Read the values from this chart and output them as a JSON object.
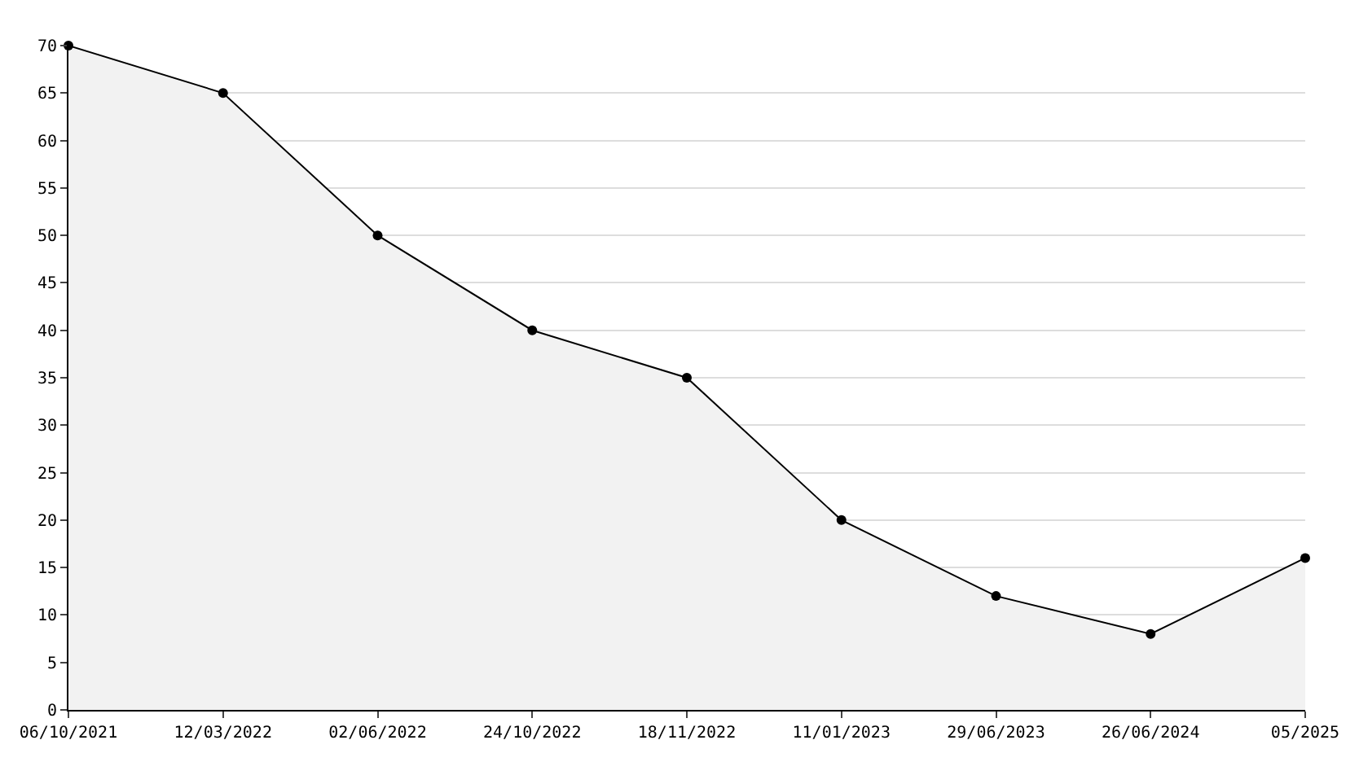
{
  "chart_data": {
    "type": "area",
    "categories": [
      "06/10/2021",
      "12/03/2022",
      "02/06/2022",
      "24/10/2022",
      "18/11/2022",
      "11/01/2023",
      "29/06/2023",
      "26/06/2024",
      "05/2025"
    ],
    "series": [
      {
        "color": "#000000",
        "values": [
          70,
          65,
          50,
          40,
          35,
          20,
          12,
          8,
          16
        ]
      }
    ],
    "ylim": [
      0,
      70
    ],
    "yticks": [
      0,
      5,
      10,
      15,
      20,
      25,
      30,
      35,
      40,
      45,
      50,
      55,
      60,
      65,
      70
    ],
    "grid": "y",
    "marker": "circle"
  }
}
